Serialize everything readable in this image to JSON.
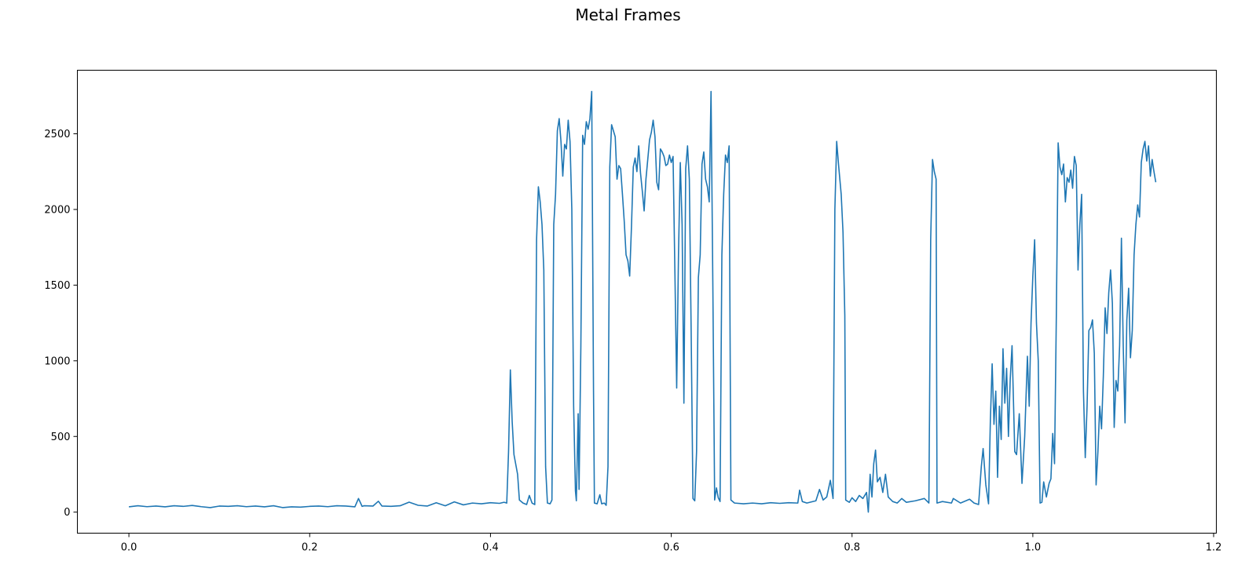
{
  "chart_data": {
    "type": "line",
    "title": "Metal Frames",
    "xlabel": "",
    "ylabel": "",
    "xlim": [
      -0.057,
      1.203
    ],
    "ylim": [
      -139,
      2920
    ],
    "xticks": [
      0.0,
      0.2,
      0.4,
      0.6,
      0.8,
      1.0,
      1.2
    ],
    "xtick_labels": [
      "0.0",
      "0.2",
      "0.4",
      "0.6",
      "0.8",
      "1.0",
      "1.2"
    ],
    "yticks": [
      0,
      500,
      1000,
      1500,
      2000,
      2500
    ],
    "ytick_labels": [
      "0",
      "500",
      "1000",
      "1500",
      "2000",
      "2500"
    ],
    "grid": false,
    "legend": "none",
    "series": [
      {
        "color": "#1f77b4",
        "points": [
          [
            0.0,
            35
          ],
          [
            0.01,
            42
          ],
          [
            0.02,
            36
          ],
          [
            0.03,
            40
          ],
          [
            0.04,
            35
          ],
          [
            0.05,
            42
          ],
          [
            0.06,
            38
          ],
          [
            0.07,
            44
          ],
          [
            0.08,
            36
          ],
          [
            0.09,
            30
          ],
          [
            0.1,
            40
          ],
          [
            0.11,
            38
          ],
          [
            0.12,
            42
          ],
          [
            0.13,
            36
          ],
          [
            0.14,
            40
          ],
          [
            0.15,
            35
          ],
          [
            0.16,
            42
          ],
          [
            0.17,
            30
          ],
          [
            0.18,
            35
          ],
          [
            0.19,
            33
          ],
          [
            0.2,
            38
          ],
          [
            0.21,
            40
          ],
          [
            0.22,
            36
          ],
          [
            0.23,
            42
          ],
          [
            0.24,
            40
          ],
          [
            0.25,
            35
          ],
          [
            0.254,
            90
          ],
          [
            0.258,
            38
          ],
          [
            0.26,
            42
          ],
          [
            0.27,
            40
          ],
          [
            0.276,
            72
          ],
          [
            0.28,
            40
          ],
          [
            0.29,
            38
          ],
          [
            0.3,
            42
          ],
          [
            0.31,
            66
          ],
          [
            0.32,
            45
          ],
          [
            0.33,
            40
          ],
          [
            0.34,
            62
          ],
          [
            0.35,
            42
          ],
          [
            0.36,
            68
          ],
          [
            0.37,
            48
          ],
          [
            0.38,
            60
          ],
          [
            0.39,
            55
          ],
          [
            0.4,
            62
          ],
          [
            0.41,
            58
          ],
          [
            0.415,
            65
          ],
          [
            0.418,
            60
          ],
          [
            0.42,
            400
          ],
          [
            0.422,
            940
          ],
          [
            0.424,
            600
          ],
          [
            0.426,
            380
          ],
          [
            0.43,
            250
          ],
          [
            0.432,
            80
          ],
          [
            0.436,
            60
          ],
          [
            0.44,
            50
          ],
          [
            0.443,
            110
          ],
          [
            0.446,
            60
          ],
          [
            0.449,
            50
          ],
          [
            0.451,
            1800
          ],
          [
            0.453,
            2150
          ],
          [
            0.455,
            2050
          ],
          [
            0.457,
            1900
          ],
          [
            0.459,
            1600
          ],
          [
            0.461,
            300
          ],
          [
            0.463,
            60
          ],
          [
            0.466,
            55
          ],
          [
            0.468,
            80
          ],
          [
            0.47,
            1900
          ],
          [
            0.472,
            2100
          ],
          [
            0.474,
            2520
          ],
          [
            0.476,
            2600
          ],
          [
            0.478,
            2450
          ],
          [
            0.48,
            2220
          ],
          [
            0.482,
            2430
          ],
          [
            0.484,
            2400
          ],
          [
            0.486,
            2590
          ],
          [
            0.488,
            2450
          ],
          [
            0.49,
            2000
          ],
          [
            0.492,
            700
          ],
          [
            0.494,
            140
          ],
          [
            0.495,
            75
          ],
          [
            0.497,
            650
          ],
          [
            0.498,
            150
          ],
          [
            0.5,
            1100
          ],
          [
            0.502,
            2490
          ],
          [
            0.504,
            2430
          ],
          [
            0.506,
            2580
          ],
          [
            0.508,
            2530
          ],
          [
            0.51,
            2600
          ],
          [
            0.512,
            2780
          ],
          [
            0.514,
            800
          ],
          [
            0.515,
            60
          ],
          [
            0.518,
            55
          ],
          [
            0.521,
            115
          ],
          [
            0.523,
            55
          ],
          [
            0.526,
            60
          ],
          [
            0.528,
            45
          ],
          [
            0.53,
            300
          ],
          [
            0.532,
            2280
          ],
          [
            0.534,
            2560
          ],
          [
            0.536,
            2520
          ],
          [
            0.538,
            2480
          ],
          [
            0.54,
            2200
          ],
          [
            0.542,
            2290
          ],
          [
            0.544,
            2270
          ],
          [
            0.546,
            2100
          ],
          [
            0.548,
            1920
          ],
          [
            0.55,
            1700
          ],
          [
            0.552,
            1660
          ],
          [
            0.554,
            1560
          ],
          [
            0.556,
            1890
          ],
          [
            0.558,
            2280
          ],
          [
            0.56,
            2340
          ],
          [
            0.562,
            2250
          ],
          [
            0.564,
            2420
          ],
          [
            0.566,
            2240
          ],
          [
            0.568,
            2120
          ],
          [
            0.57,
            1990
          ],
          [
            0.572,
            2200
          ],
          [
            0.574,
            2330
          ],
          [
            0.576,
            2460
          ],
          [
            0.578,
            2510
          ],
          [
            0.58,
            2590
          ],
          [
            0.582,
            2480
          ],
          [
            0.584,
            2180
          ],
          [
            0.586,
            2130
          ],
          [
            0.588,
            2400
          ],
          [
            0.59,
            2380
          ],
          [
            0.592,
            2350
          ],
          [
            0.594,
            2290
          ],
          [
            0.596,
            2300
          ],
          [
            0.598,
            2360
          ],
          [
            0.6,
            2310
          ],
          [
            0.602,
            2350
          ],
          [
            0.604,
            1600
          ],
          [
            0.606,
            820
          ],
          [
            0.608,
            1700
          ],
          [
            0.61,
            2310
          ],
          [
            0.612,
            1900
          ],
          [
            0.614,
            720
          ],
          [
            0.616,
            2270
          ],
          [
            0.618,
            2420
          ],
          [
            0.62,
            2200
          ],
          [
            0.622,
            1200
          ],
          [
            0.624,
            90
          ],
          [
            0.626,
            75
          ],
          [
            0.628,
            400
          ],
          [
            0.63,
            1550
          ],
          [
            0.632,
            1700
          ],
          [
            0.634,
            2300
          ],
          [
            0.636,
            2380
          ],
          [
            0.638,
            2200
          ],
          [
            0.64,
            2150
          ],
          [
            0.642,
            2050
          ],
          [
            0.644,
            2780
          ],
          [
            0.646,
            1500
          ],
          [
            0.648,
            80
          ],
          [
            0.65,
            160
          ],
          [
            0.652,
            95
          ],
          [
            0.654,
            70
          ],
          [
            0.656,
            1700
          ],
          [
            0.658,
            2100
          ],
          [
            0.66,
            2360
          ],
          [
            0.662,
            2310
          ],
          [
            0.664,
            2420
          ],
          [
            0.666,
            80
          ],
          [
            0.67,
            60
          ],
          [
            0.68,
            55
          ],
          [
            0.69,
            60
          ],
          [
            0.7,
            55
          ],
          [
            0.71,
            62
          ],
          [
            0.72,
            58
          ],
          [
            0.73,
            62
          ],
          [
            0.74,
            60
          ],
          [
            0.742,
            145
          ],
          [
            0.745,
            70
          ],
          [
            0.75,
            60
          ],
          [
            0.76,
            75
          ],
          [
            0.764,
            150
          ],
          [
            0.768,
            80
          ],
          [
            0.772,
            100
          ],
          [
            0.776,
            210
          ],
          [
            0.779,
            90
          ],
          [
            0.781,
            2000
          ],
          [
            0.783,
            2450
          ],
          [
            0.785,
            2300
          ],
          [
            0.788,
            2100
          ],
          [
            0.79,
            1850
          ],
          [
            0.792,
            1300
          ],
          [
            0.793,
            80
          ],
          [
            0.797,
            65
          ],
          [
            0.8,
            95
          ],
          [
            0.804,
            70
          ],
          [
            0.808,
            110
          ],
          [
            0.812,
            90
          ],
          [
            0.816,
            130
          ],
          [
            0.818,
            0
          ],
          [
            0.82,
            250
          ],
          [
            0.822,
            100
          ],
          [
            0.824,
            320
          ],
          [
            0.826,
            410
          ],
          [
            0.828,
            200
          ],
          [
            0.831,
            230
          ],
          [
            0.834,
            130
          ],
          [
            0.837,
            250
          ],
          [
            0.84,
            100
          ],
          [
            0.845,
            70
          ],
          [
            0.85,
            60
          ],
          [
            0.855,
            90
          ],
          [
            0.86,
            65
          ],
          [
            0.87,
            75
          ],
          [
            0.88,
            90
          ],
          [
            0.885,
            60
          ],
          [
            0.887,
            1800
          ],
          [
            0.889,
            2330
          ],
          [
            0.891,
            2250
          ],
          [
            0.893,
            2200
          ],
          [
            0.894,
            60
          ],
          [
            0.9,
            70
          ],
          [
            0.91,
            60
          ],
          [
            0.912,
            90
          ],
          [
            0.92,
            60
          ],
          [
            0.93,
            85
          ],
          [
            0.935,
            60
          ],
          [
            0.94,
            50
          ],
          [
            0.943,
            300
          ],
          [
            0.945,
            420
          ],
          [
            0.948,
            180
          ],
          [
            0.951,
            55
          ],
          [
            0.953,
            600
          ],
          [
            0.955,
            980
          ],
          [
            0.957,
            580
          ],
          [
            0.959,
            800
          ],
          [
            0.961,
            230
          ],
          [
            0.963,
            700
          ],
          [
            0.965,
            480
          ],
          [
            0.967,
            1080
          ],
          [
            0.969,
            720
          ],
          [
            0.971,
            950
          ],
          [
            0.973,
            500
          ],
          [
            0.975,
            880
          ],
          [
            0.977,
            1100
          ],
          [
            0.98,
            400
          ],
          [
            0.982,
            380
          ],
          [
            0.985,
            650
          ],
          [
            0.988,
            190
          ],
          [
            0.991,
            500
          ],
          [
            0.994,
            1030
          ],
          [
            0.996,
            700
          ],
          [
            0.998,
            1250
          ],
          [
            1.0,
            1560
          ],
          [
            1.002,
            1800
          ],
          [
            1.004,
            1250
          ],
          [
            1.006,
            1000
          ],
          [
            1.008,
            60
          ],
          [
            1.01,
            65
          ],
          [
            1.012,
            200
          ],
          [
            1.015,
            100
          ],
          [
            1.018,
            190
          ],
          [
            1.02,
            220
          ],
          [
            1.022,
            520
          ],
          [
            1.024,
            320
          ],
          [
            1.026,
            1300
          ],
          [
            1.028,
            2440
          ],
          [
            1.03,
            2280
          ],
          [
            1.032,
            2230
          ],
          [
            1.034,
            2300
          ],
          [
            1.036,
            2050
          ],
          [
            1.038,
            2210
          ],
          [
            1.04,
            2180
          ],
          [
            1.042,
            2260
          ],
          [
            1.044,
            2140
          ],
          [
            1.046,
            2350
          ],
          [
            1.048,
            2290
          ],
          [
            1.05,
            1600
          ],
          [
            1.052,
            1900
          ],
          [
            1.054,
            2100
          ],
          [
            1.056,
            800
          ],
          [
            1.058,
            360
          ],
          [
            1.06,
            700
          ],
          [
            1.062,
            1200
          ],
          [
            1.064,
            1220
          ],
          [
            1.066,
            1270
          ],
          [
            1.068,
            1050
          ],
          [
            1.07,
            180
          ],
          [
            1.072,
            400
          ],
          [
            1.074,
            700
          ],
          [
            1.076,
            550
          ],
          [
            1.078,
            900
          ],
          [
            1.08,
            1350
          ],
          [
            1.082,
            1180
          ],
          [
            1.084,
            1450
          ],
          [
            1.086,
            1600
          ],
          [
            1.088,
            1380
          ],
          [
            1.09,
            560
          ],
          [
            1.092,
            870
          ],
          [
            1.094,
            800
          ],
          [
            1.096,
            1100
          ],
          [
            1.098,
            1810
          ],
          [
            1.1,
            1100
          ],
          [
            1.102,
            590
          ],
          [
            1.104,
            1270
          ],
          [
            1.106,
            1480
          ],
          [
            1.108,
            1020
          ],
          [
            1.11,
            1200
          ],
          [
            1.112,
            1700
          ],
          [
            1.114,
            1900
          ],
          [
            1.116,
            2030
          ],
          [
            1.118,
            1950
          ],
          [
            1.12,
            2310
          ],
          [
            1.122,
            2400
          ],
          [
            1.124,
            2450
          ],
          [
            1.126,
            2320
          ],
          [
            1.128,
            2420
          ],
          [
            1.13,
            2220
          ],
          [
            1.132,
            2330
          ],
          [
            1.134,
            2250
          ],
          [
            1.136,
            2180
          ]
        ]
      }
    ]
  }
}
